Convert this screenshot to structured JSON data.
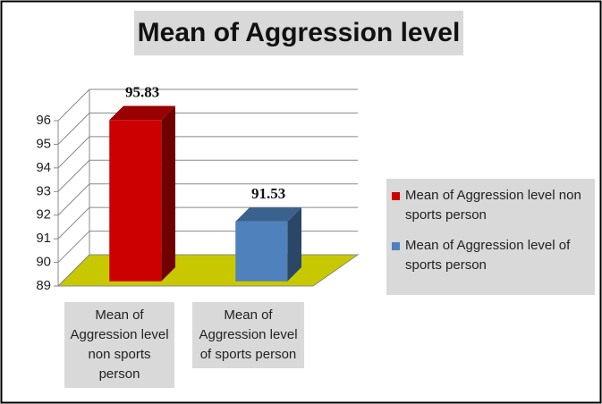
{
  "chart_data": {
    "type": "bar3d",
    "title": "Mean of Aggression level",
    "categories": [
      "Mean of Aggression level non sports person",
      "Mean of Aggression level of sports person"
    ],
    "values": [
      95.83,
      91.53
    ],
    "colors": [
      "#cc0000",
      "#4f81bd"
    ],
    "ylim": [
      89,
      96
    ],
    "yticks": [
      89,
      90,
      91,
      92,
      93,
      94,
      95,
      96
    ],
    "grid": true
  }
}
